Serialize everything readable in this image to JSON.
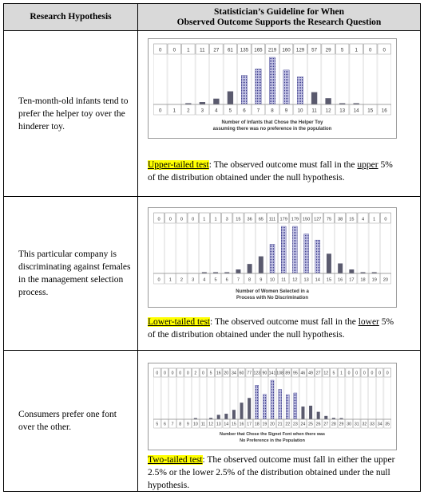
{
  "table": {
    "header_left": "Research Hypothesis",
    "header_right_line1": "Statistician’s Guideline for When",
    "header_right_line2": "Observed Outcome Supports the Research Question"
  },
  "rows": [
    {
      "hypothesis": "Ten-month-old infants tend to prefer the helper toy over the hinderer toy.",
      "test_name": "Upper-tailed test",
      "guide_pre": ": The observed outcome must fall in the ",
      "guide_tail": "upper",
      "guide_post": " 5% of the distribution obtained under the null hypothesis."
    },
    {
      "hypothesis": "This particular company is discriminating against females in the management selection process.",
      "test_name": "Lower-tailed test",
      "guide_pre": ": The observed outcome must fall in the ",
      "guide_tail": "lower",
      "guide_post": " 5% of the distribution obtained under the null hypothesis."
    },
    {
      "hypothesis": "Consumers prefer one font over the other.",
      "test_name": "Two-tailed test",
      "guide_pre": ": The observed outcome must fall in either the upper 2.5% or the lower 2.5% of the distribution obtained under the null hypothesis.",
      "guide_tail": "",
      "guide_post": ""
    }
  ],
  "chart_data": [
    {
      "type": "bar",
      "categories": [
        "0",
        "1",
        "2",
        "3",
        "4",
        "5",
        "6",
        "7",
        "8",
        "9",
        "10",
        "11",
        "12",
        "13",
        "14",
        "15",
        "16"
      ],
      "values": [
        0,
        0,
        1,
        11,
        27,
        61,
        135,
        165,
        219,
        160,
        129,
        57,
        29,
        5,
        1,
        0,
        0
      ],
      "xlabel": "Number of Infants that Chose the Helper Toy assuming there was no preference in the population",
      "colors": {
        "bar": "#5a5a6e",
        "bar_dotted": "#3a3a8a",
        "count_box": "#9a9a9a"
      }
    },
    {
      "type": "bar",
      "categories": [
        "0",
        "1",
        "2",
        "3",
        "4",
        "5",
        "6",
        "7",
        "8",
        "9",
        "10",
        "11",
        "12",
        "13",
        "14",
        "15",
        "16",
        "17",
        "18",
        "19",
        "20"
      ],
      "values": [
        0,
        0,
        0,
        0,
        1,
        1,
        3,
        15,
        36,
        65,
        111,
        179,
        179,
        150,
        127,
        75,
        38,
        15,
        4,
        1,
        0
      ],
      "xlabel": "Number of Women Selected in a Process with No Discrimination",
      "colors": {
        "bar": "#5a5a6e",
        "bar_dotted": "#3a3a8a",
        "count_box": "#9a9a9a"
      }
    },
    {
      "type": "bar",
      "categories": [
        "5",
        "6",
        "7",
        "8",
        "9",
        "10",
        "11",
        "12",
        "13",
        "14",
        "15",
        "16",
        "17",
        "18",
        "19",
        "20",
        "21",
        "22",
        "23",
        "24",
        "25",
        "26",
        "27",
        "28",
        "29",
        "30",
        "31",
        "32",
        "33",
        "34",
        "35"
      ],
      "values": [
        0,
        0,
        0,
        0,
        0,
        2,
        0,
        5,
        16,
        20,
        34,
        60,
        77,
        123,
        90,
        141,
        108,
        89,
        95,
        46,
        49,
        27,
        12,
        5,
        1,
        0,
        0,
        0,
        0,
        0,
        0
      ],
      "xlabel": "Number that Chose the Signet Font when there was No Preference in the Population",
      "colors": {
        "bar": "#5a5a6e",
        "bar_dotted": "#3a3a8a",
        "count_box": "#9a9a9a"
      }
    }
  ]
}
